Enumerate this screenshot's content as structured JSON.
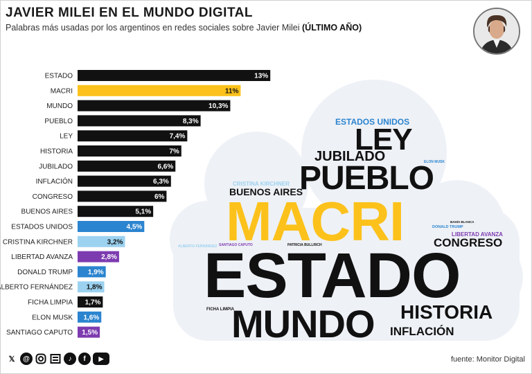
{
  "header": {
    "title": "JAVIER MILEI EN EL MUNDO DIGITAL",
    "subtitle_main": "Palabras más usadas por los argentinos en redes sociales sobre Javier Milei",
    "subtitle_bold": "(ÚLTIMO AÑO)"
  },
  "colors": {
    "black": "#111111",
    "yellow": "#fcc21b",
    "blue": "#2b84cf",
    "lightblue": "#9cd2f0",
    "purple": "#7d3bb0"
  },
  "chart_data": {
    "type": "bar",
    "orientation": "horizontal",
    "categories": [
      "ESTADO",
      "MACRI",
      "MUNDO",
      "PUEBLO",
      "LEY",
      "HISTORIA",
      "JUBILADO",
      "INFLACIÓN",
      "CONGRESO",
      "BUENOS AIRES",
      "ESTADOS UNIDOS",
      "CRISTINA KIRCHNER",
      "LIBERTAD AVANZA",
      "DONALD TRUMP",
      "ALBERTO FERNÁNDEZ",
      "FICHA LIMPIA",
      "ELON MUSK",
      "SANTIAGO CAPUTO"
    ],
    "values": [
      13,
      11,
      10.3,
      8.3,
      7.4,
      7,
      6.6,
      6.3,
      6,
      5.1,
      4.5,
      3.2,
      2.8,
      1.9,
      1.8,
      1.7,
      1.6,
      1.5
    ],
    "labels": [
      "13%",
      "11%",
      "10,3%",
      "8,3%",
      "7,4%",
      "7%",
      "6,6%",
      "6,3%",
      "6%",
      "5,1%",
      "4,5%",
      "3,2%",
      "2,8%",
      "1,9%",
      "1,8%",
      "1,7%",
      "1,6%",
      "1,5%"
    ],
    "bar_colors": [
      "black",
      "yellow",
      "black",
      "black",
      "black",
      "black",
      "black",
      "black",
      "black",
      "black",
      "blue",
      "lightblue",
      "purple",
      "blue",
      "lightblue",
      "black",
      "blue",
      "purple"
    ]
  },
  "word_cloud": [
    {
      "id": "estado",
      "text": "ESTADO",
      "color": "black"
    },
    {
      "id": "macri",
      "text": "MACRI",
      "color": "yellow"
    },
    {
      "id": "mundo",
      "text": "MUNDO",
      "color": "black"
    },
    {
      "id": "pueblo",
      "text": "PUEBLO",
      "color": "black"
    },
    {
      "id": "ley",
      "text": "LEY",
      "color": "black"
    },
    {
      "id": "historia",
      "text": "HISTORIA",
      "color": "black"
    },
    {
      "id": "jubilado",
      "text": "JUBILADO",
      "color": "black"
    },
    {
      "id": "inflacion",
      "text": "INFLACIÓN",
      "color": "black"
    },
    {
      "id": "congreso",
      "text": "CONGRESO",
      "color": "black"
    },
    {
      "id": "buenos-aires",
      "text": "BUENOS AIRES",
      "color": "black"
    },
    {
      "id": "estados-unidos",
      "text": "ESTADOS UNIDOS",
      "color": "blue"
    },
    {
      "id": "cristina",
      "text": "CRISTINA KIRCHNER",
      "color": "lightblue"
    },
    {
      "id": "libertad",
      "text": "LIBERTAD AVANZA",
      "color": "purple"
    },
    {
      "id": "trump",
      "text": "DONALD TRUMP",
      "color": "blue"
    },
    {
      "id": "alberto",
      "text": "ALBERTO FERNÁNDEZ",
      "color": "lightblue"
    },
    {
      "id": "ficha",
      "text": "FICHA LIMPIA",
      "color": "black"
    },
    {
      "id": "elon",
      "text": "ELON MUSK",
      "color": "blue"
    },
    {
      "id": "caputo",
      "text": "SANTIAGO CAPUTO",
      "color": "purple"
    },
    {
      "id": "bahia",
      "text": "BAHÍA BLANCA",
      "color": "black"
    },
    {
      "id": "patricia",
      "text": "PATRICIA BULLRICH",
      "color": "black"
    }
  ],
  "social_icons": [
    "x-icon",
    "threads-icon",
    "instagram-icon",
    "news-icon",
    "tiktok-icon",
    "facebook-icon",
    "youtube-icon"
  ],
  "footer": {
    "source": "fuente: Monitor Digital"
  }
}
